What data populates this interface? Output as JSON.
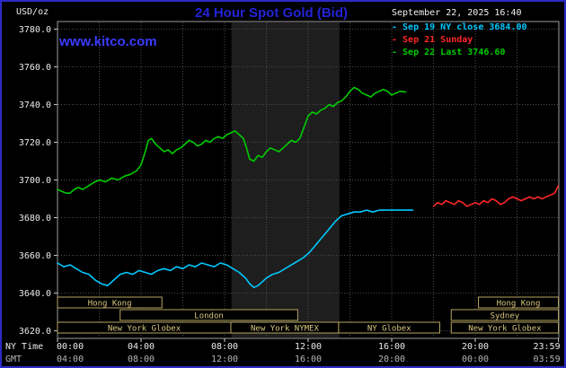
{
  "header": {
    "unit_label": "USD/oz",
    "title": "24 Hour Spot Gold (Bid)",
    "datetime": "September 22, 2025 16:40",
    "site_link": "www.kitco.com"
  },
  "legend": {
    "prefix": "-",
    "items": [
      {
        "label": "Sep 19 NY close 3684.00",
        "color": "#00c8ff"
      },
      {
        "label": "Sep 21 Sunday",
        "color": "#ff2626"
      },
      {
        "label": "Sep 22 Last 3746.60",
        "color": "#00cc00"
      }
    ]
  },
  "chart_data": {
    "type": "line",
    "title": "24 Hour Spot Gold (Bid)",
    "unit": "USD/oz",
    "x_axis": {
      "label_primary": "NY Time",
      "label_secondary": "GMT",
      "range_hours": [
        0,
        24
      ],
      "tick_hours": [
        0,
        4,
        8,
        12,
        16,
        20,
        23.983
      ],
      "ny_labels": [
        "00:00",
        "04:00",
        "08:00",
        "12:00",
        "16:00",
        "20:00",
        "23:59"
      ],
      "gmt_labels": [
        "04:00",
        "08:00",
        "12:00",
        "16:00",
        "20:00",
        "00:00",
        "03:59"
      ]
    },
    "y_axis": {
      "range": [
        3616,
        3784
      ],
      "tick_values": [
        3780,
        3760,
        3740,
        3720,
        3700,
        3680,
        3660,
        3640,
        3620
      ],
      "tick_labels": [
        "3780.0",
        "3760.0",
        "3740.0",
        "3720.0",
        "3700.0",
        "3680.0",
        "3660.0",
        "3640.0",
        "3620.0"
      ]
    },
    "grid": {
      "color": "#4d4d4d",
      "v_step_hours": 2
    },
    "nymex_band": {
      "start_hour": 8.33,
      "end_hour": 13.5,
      "color": "#1e1e1e"
    },
    "sessions_style": {
      "border_color": "#b5a45f",
      "text_color": "#d9c87e"
    },
    "sessions": [
      {
        "row": 0,
        "label": "Hong Kong",
        "start_hour": 0,
        "end_hour": 5.0
      },
      {
        "row": 0,
        "label": "Hong Kong",
        "start_hour": 20.15,
        "end_hour": 23.98
      },
      {
        "row": 1,
        "label": "London",
        "start_hour": 3.0,
        "end_hour": 11.5
      },
      {
        "row": 1,
        "label": "Sydney",
        "start_hour": 18.85,
        "end_hour": 23.98
      },
      {
        "row": 2,
        "label": "New York Globex",
        "start_hour": 0,
        "end_hour": 8.3
      },
      {
        "row": 2,
        "label": "New York NYMEX",
        "start_hour": 8.3,
        "end_hour": 13.46
      },
      {
        "row": 2,
        "label": "NY Globex",
        "start_hour": 13.46,
        "end_hour": 18.3
      },
      {
        "row": 2,
        "label": "New York Globex",
        "start_hour": 18.85,
        "end_hour": 23.98
      }
    ],
    "series": [
      {
        "name": "Sep 19 NY close",
        "color": "#00c8ff",
        "close": 3684.0,
        "points": [
          [
            0,
            3656
          ],
          [
            0.3,
            3654
          ],
          [
            0.6,
            3655
          ],
          [
            0.9,
            3653
          ],
          [
            1.2,
            3651
          ],
          [
            1.5,
            3650
          ],
          [
            1.8,
            3647
          ],
          [
            2.1,
            3645
          ],
          [
            2.4,
            3644
          ],
          [
            2.7,
            3647
          ],
          [
            3.0,
            3650
          ],
          [
            3.3,
            3651
          ],
          [
            3.6,
            3650
          ],
          [
            3.9,
            3652
          ],
          [
            4.2,
            3651
          ],
          [
            4.5,
            3650
          ],
          [
            4.8,
            3652
          ],
          [
            5.1,
            3653
          ],
          [
            5.4,
            3652
          ],
          [
            5.7,
            3654
          ],
          [
            6.0,
            3653
          ],
          [
            6.3,
            3655
          ],
          [
            6.6,
            3654
          ],
          [
            6.9,
            3656
          ],
          [
            7.2,
            3655
          ],
          [
            7.5,
            3654
          ],
          [
            7.8,
            3656
          ],
          [
            8.1,
            3655
          ],
          [
            8.4,
            3653
          ],
          [
            8.7,
            3651
          ],
          [
            9.0,
            3648
          ],
          [
            9.2,
            3645
          ],
          [
            9.4,
            3643
          ],
          [
            9.6,
            3644
          ],
          [
            9.8,
            3646
          ],
          [
            10.0,
            3648
          ],
          [
            10.3,
            3650
          ],
          [
            10.6,
            3651
          ],
          [
            10.9,
            3653
          ],
          [
            11.2,
            3655
          ],
          [
            11.5,
            3657
          ],
          [
            11.8,
            3659
          ],
          [
            12.1,
            3662
          ],
          [
            12.4,
            3666
          ],
          [
            12.7,
            3670
          ],
          [
            13.0,
            3674
          ],
          [
            13.3,
            3678
          ],
          [
            13.6,
            3681
          ],
          [
            13.9,
            3682
          ],
          [
            14.2,
            3683
          ],
          [
            14.5,
            3683
          ],
          [
            14.8,
            3684
          ],
          [
            15.1,
            3683
          ],
          [
            15.4,
            3684
          ],
          [
            15.7,
            3684
          ],
          [
            16.0,
            3684
          ],
          [
            16.4,
            3684
          ],
          [
            16.8,
            3684
          ],
          [
            17.0,
            3684
          ]
        ]
      },
      {
        "name": "Sep 21 Sunday",
        "color": "#ff2626",
        "points": [
          [
            18.0,
            3686
          ],
          [
            18.2,
            3688
          ],
          [
            18.4,
            3687
          ],
          [
            18.6,
            3689
          ],
          [
            18.8,
            3688
          ],
          [
            19.0,
            3687
          ],
          [
            19.2,
            3689
          ],
          [
            19.4,
            3688
          ],
          [
            19.6,
            3686
          ],
          [
            19.8,
            3687
          ],
          [
            20.0,
            3688
          ],
          [
            20.2,
            3687
          ],
          [
            20.4,
            3689
          ],
          [
            20.6,
            3688
          ],
          [
            20.8,
            3690
          ],
          [
            21.0,
            3689
          ],
          [
            21.2,
            3687
          ],
          [
            21.4,
            3688
          ],
          [
            21.6,
            3690
          ],
          [
            21.8,
            3691
          ],
          [
            22.0,
            3690
          ],
          [
            22.2,
            3689
          ],
          [
            22.4,
            3690
          ],
          [
            22.6,
            3691
          ],
          [
            22.8,
            3690
          ],
          [
            23.0,
            3691
          ],
          [
            23.2,
            3690
          ],
          [
            23.4,
            3691
          ],
          [
            23.6,
            3692
          ],
          [
            23.8,
            3693
          ],
          [
            23.98,
            3697
          ]
        ]
      },
      {
        "name": "Sep 22 Last",
        "color": "#00cc00",
        "last": 3746.6,
        "points": [
          [
            0,
            3695
          ],
          [
            0.2,
            3694
          ],
          [
            0.4,
            3693
          ],
          [
            0.6,
            3693
          ],
          [
            0.8,
            3695
          ],
          [
            1.0,
            3696
          ],
          [
            1.2,
            3695
          ],
          [
            1.5,
            3697
          ],
          [
            1.8,
            3699
          ],
          [
            2.0,
            3700
          ],
          [
            2.3,
            3699
          ],
          [
            2.6,
            3701
          ],
          [
            2.9,
            3700
          ],
          [
            3.2,
            3702
          ],
          [
            3.5,
            3703
          ],
          [
            3.8,
            3705
          ],
          [
            4.0,
            3708
          ],
          [
            4.2,
            3715
          ],
          [
            4.35,
            3721
          ],
          [
            4.5,
            3722
          ],
          [
            4.7,
            3719
          ],
          [
            4.9,
            3717
          ],
          [
            5.1,
            3715
          ],
          [
            5.3,
            3716
          ],
          [
            5.5,
            3714
          ],
          [
            5.7,
            3716
          ],
          [
            5.9,
            3717
          ],
          [
            6.1,
            3719
          ],
          [
            6.3,
            3721
          ],
          [
            6.5,
            3720
          ],
          [
            6.7,
            3718
          ],
          [
            6.9,
            3719
          ],
          [
            7.1,
            3721
          ],
          [
            7.3,
            3720
          ],
          [
            7.5,
            3722
          ],
          [
            7.7,
            3723
          ],
          [
            7.9,
            3722
          ],
          [
            8.1,
            3724
          ],
          [
            8.3,
            3725
          ],
          [
            8.5,
            3726
          ],
          [
            8.7,
            3724
          ],
          [
            8.9,
            3722
          ],
          [
            9.05,
            3717
          ],
          [
            9.2,
            3711
          ],
          [
            9.4,
            3710
          ],
          [
            9.6,
            3713
          ],
          [
            9.8,
            3712
          ],
          [
            10.0,
            3715
          ],
          [
            10.2,
            3717
          ],
          [
            10.4,
            3716
          ],
          [
            10.6,
            3715
          ],
          [
            10.8,
            3717
          ],
          [
            11.0,
            3719
          ],
          [
            11.2,
            3721
          ],
          [
            11.4,
            3720
          ],
          [
            11.6,
            3722
          ],
          [
            11.8,
            3728
          ],
          [
            12.0,
            3734
          ],
          [
            12.2,
            3736
          ],
          [
            12.4,
            3735
          ],
          [
            12.6,
            3737
          ],
          [
            12.8,
            3738
          ],
          [
            13.0,
            3740
          ],
          [
            13.2,
            3739
          ],
          [
            13.4,
            3741
          ],
          [
            13.6,
            3742
          ],
          [
            13.8,
            3744
          ],
          [
            14.0,
            3747
          ],
          [
            14.2,
            3749
          ],
          [
            14.4,
            3748
          ],
          [
            14.6,
            3746
          ],
          [
            14.8,
            3745
          ],
          [
            15.0,
            3744
          ],
          [
            15.2,
            3746
          ],
          [
            15.4,
            3747
          ],
          [
            15.6,
            3748
          ],
          [
            15.8,
            3747
          ],
          [
            16.0,
            3745
          ],
          [
            16.2,
            3746
          ],
          [
            16.4,
            3747
          ],
          [
            16.67,
            3746.6
          ]
        ]
      }
    ]
  }
}
